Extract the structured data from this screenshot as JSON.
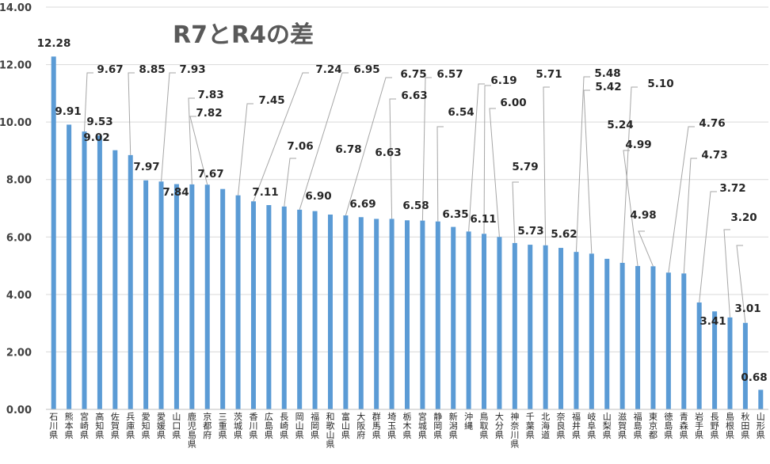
{
  "chart_data": {
    "type": "bar",
    "title": "R7とR4の差",
    "xlabel": "",
    "ylabel": "",
    "ylim": [
      0,
      14
    ],
    "yticks": [
      "0.00",
      "2.00",
      "4.00",
      "6.00",
      "8.00",
      "10.00",
      "12.00",
      "14.00"
    ],
    "grid": true,
    "legend": "none",
    "bar_color": "#5B9BD5",
    "leader_line_color": "#A6A6A6",
    "categories": [
      "石川県",
      "熊本県",
      "宮崎県",
      "高知県",
      "佐賀県",
      "兵庫県",
      "愛知県",
      "愛媛県",
      "山口県",
      "鹿児島県",
      "京都府",
      "三重県",
      "茨城県",
      "香川県",
      "広島県",
      "長崎県",
      "岡山県",
      "福岡県",
      "和歌山県",
      "富山県",
      "大阪府",
      "群馬県",
      "埼玉県",
      "栃木県",
      "宮城県",
      "静岡県",
      "新潟県",
      "沖縄",
      "鳥取県",
      "大分県",
      "神奈川県",
      "千葉県",
      "北海道",
      "奈良県",
      "福井県",
      "岐阜県",
      "山梨県",
      "滋賀県",
      "福島県",
      "東京都",
      "徳島県",
      "青森県",
      "岩手県",
      "長野県",
      "島根県",
      "秋田県",
      "山形県"
    ],
    "values": [
      12.28,
      9.91,
      9.67,
      9.53,
      9.02,
      8.85,
      7.97,
      7.93,
      7.84,
      7.83,
      7.82,
      7.67,
      7.45,
      7.24,
      7.11,
      7.06,
      6.95,
      6.9,
      6.78,
      6.75,
      6.69,
      6.63,
      6.63,
      6.58,
      6.57,
      6.54,
      6.35,
      6.19,
      6.11,
      6.0,
      5.79,
      5.73,
      5.71,
      5.62,
      5.48,
      5.42,
      5.24,
      5.1,
      4.99,
      4.98,
      4.76,
      4.73,
      3.72,
      3.41,
      3.2,
      3.01,
      0.68
    ],
    "data_labels": [
      "12.28",
      "9.91",
      "9.67",
      "9.53",
      "9.02",
      "8.85",
      "7.97",
      "7.93",
      "7.84",
      "7.83",
      "7.82",
      "7.67",
      "7.45",
      "7.24",
      "7.11",
      "7.06",
      "6.95",
      "6.90",
      "6.78",
      "6.75",
      "6.69",
      "6.63",
      "6.63",
      "6.58",
      "6.57",
      "6.54",
      "6.35",
      "6.19",
      "6.11",
      "6.00",
      "5.79",
      "5.73",
      "5.71",
      "5.62",
      "5.48",
      "5.42",
      "5.24",
      "5.10",
      "4.99",
      "4.98",
      "4.76",
      "4.73",
      "3.72",
      "3.41",
      "3.20",
      "3.01",
      "0.68"
    ]
  }
}
